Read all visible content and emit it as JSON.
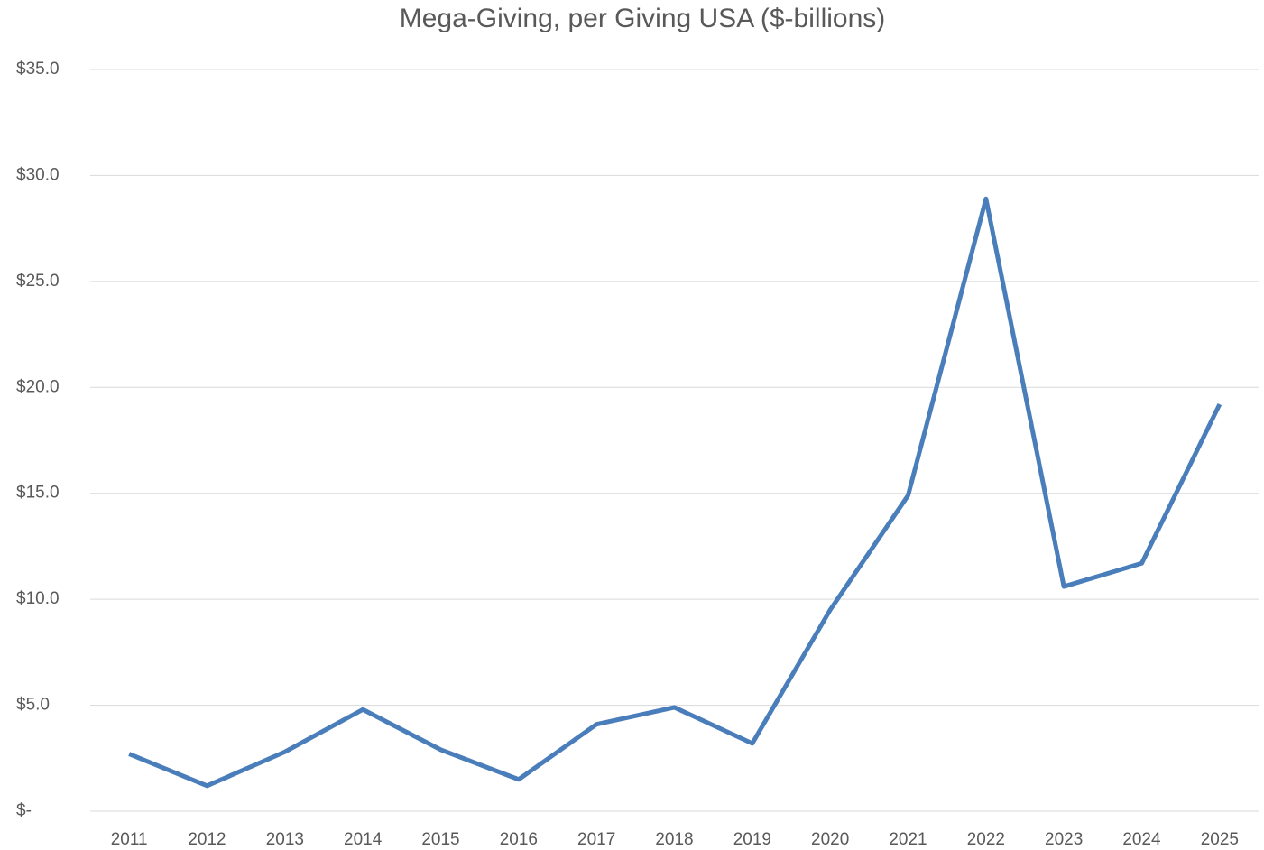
{
  "chart_data": {
    "type": "line",
    "title": "Mega-Giving, per Giving USA ($-billions)",
    "categories": [
      "2011",
      "2012",
      "2013",
      "2014",
      "2015",
      "2016",
      "2017",
      "2018",
      "2019",
      "2020",
      "2021",
      "2022",
      "2023",
      "2024",
      "2025"
    ],
    "series": [
      {
        "name": "Mega-Giving",
        "color": "#4a7ebb",
        "values": [
          2.7,
          1.2,
          2.8,
          4.8,
          2.9,
          1.5,
          4.1,
          4.9,
          3.2,
          9.5,
          14.9,
          28.9,
          10.6,
          11.7,
          19.2
        ]
      }
    ],
    "ylim": [
      0,
      35
    ],
    "yticks": [
      {
        "value": 0,
        "label": "$-"
      },
      {
        "value": 5,
        "label": "$5.0"
      },
      {
        "value": 10,
        "label": "$10.0"
      },
      {
        "value": 15,
        "label": "$15.0"
      },
      {
        "value": 20,
        "label": "$20.0"
      },
      {
        "value": 25,
        "label": "$25.0"
      },
      {
        "value": 30,
        "label": "$30.0"
      },
      {
        "value": 35,
        "label": "$35.0"
      }
    ],
    "grid": true
  }
}
